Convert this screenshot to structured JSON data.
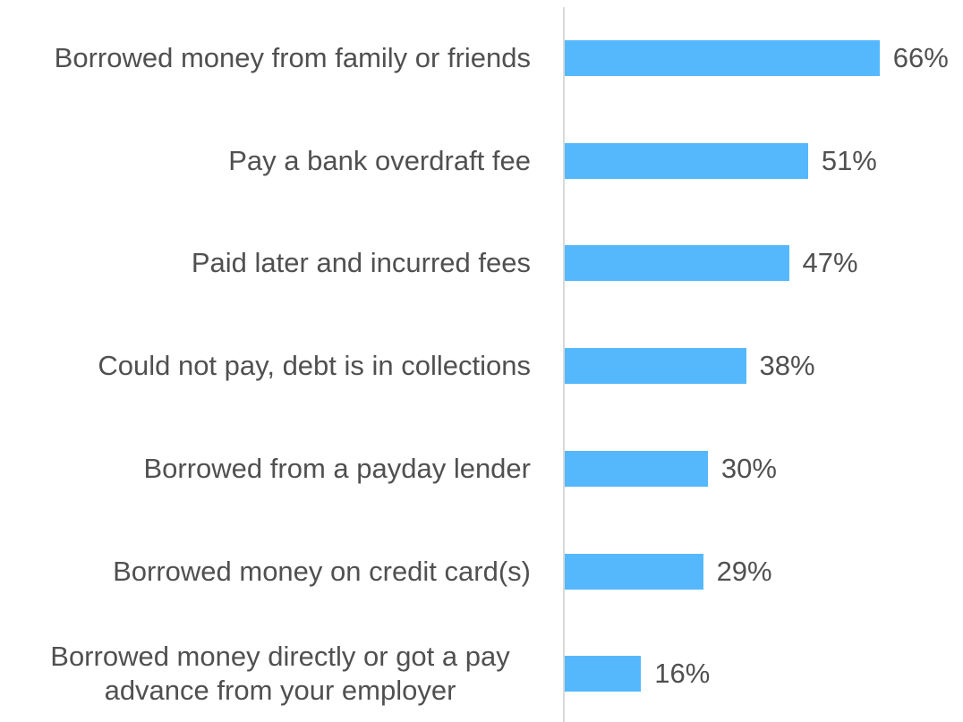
{
  "chart_data": {
    "type": "bar",
    "orientation": "horizontal",
    "categories": [
      "Borrowed money from family or friends",
      "Pay a bank overdraft fee",
      "Paid later and incurred fees",
      "Could not pay, debt is in collections",
      "Borrowed from a payday lender",
      "Borrowed money on credit card(s)",
      "Borrowed money directly or got a pay advance from your employer"
    ],
    "values": [
      66,
      51,
      47,
      38,
      30,
      29,
      16
    ],
    "value_labels": [
      "66%",
      "51%",
      "47%",
      "38%",
      "30%",
      "29%",
      "16%"
    ],
    "color": "#55b8fc"
  }
}
